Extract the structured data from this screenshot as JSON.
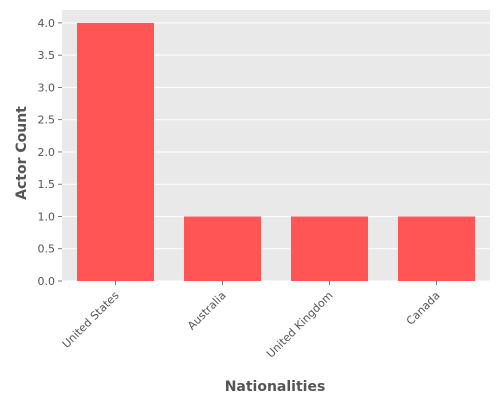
{
  "chart_data": {
    "type": "bar",
    "title": "",
    "xlabel": "Nationalities",
    "ylabel": "Actor Count",
    "categories": [
      "United States",
      "Australia",
      "United Kingdom",
      "Canada"
    ],
    "values": [
      4,
      1,
      1,
      1
    ],
    "ylim": [
      0,
      4.2
    ],
    "yticks": [
      0.0,
      0.5,
      1.0,
      1.5,
      2.0,
      2.5,
      3.0,
      3.5,
      4.0
    ],
    "ytick_labels": [
      "0.0",
      "0.5",
      "1.0",
      "1.5",
      "2.0",
      "2.5",
      "3.0",
      "3.5",
      "4.0"
    ],
    "grid": true,
    "bar_color": "#ff5555",
    "plot_background": "#e9e9e9",
    "grid_color": "#ffffff",
    "legend": "none"
  }
}
